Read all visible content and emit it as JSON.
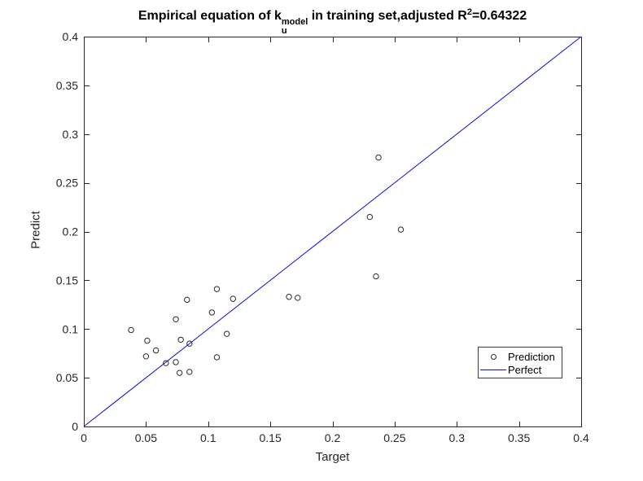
{
  "title": {
    "prefix": "Empirical equation of k",
    "k_sup": "model",
    "k_sub": "u",
    "middle": " in training set,adjusted R",
    "r_exp": "2",
    "suffix": "=0.64322",
    "plain": "Empirical equation of k_u^model in training set,adjusted R^2=0.64322"
  },
  "colors": {
    "axis": "#262626",
    "tick_label": "#262626",
    "title": "#000000",
    "background": "#ffffff",
    "marker": "#2b2b2b",
    "line": "#0d0dd6"
  },
  "chart_data": {
    "type": "scatter",
    "xlabel": "Target",
    "ylabel": "Predict",
    "xlim": [
      0,
      0.4
    ],
    "ylim": [
      0,
      0.4
    ],
    "grid": false,
    "box": true,
    "legend_position": "southeast",
    "xtick_values": [
      0,
      0.05,
      0.1,
      0.15,
      0.2,
      0.25,
      0.3,
      0.35,
      0.4
    ],
    "xtick_labels": [
      "0",
      "0.05",
      "0.1",
      "0.15",
      "0.2",
      "0.25",
      "0.3",
      "0.35",
      "0.4"
    ],
    "ytick_values": [
      0,
      0.05,
      0.1,
      0.15,
      0.2,
      0.25,
      0.3,
      0.35,
      0.4
    ],
    "ytick_labels": [
      "0",
      "0.05",
      "0.1",
      "0.15",
      "0.2",
      "0.25",
      "0.3",
      "0.35",
      "0.4"
    ],
    "series": [
      {
        "name": "Prediction",
        "kind": "scatter",
        "marker": "open-circle",
        "color": "#2b2b2b",
        "points": [
          [
            0.038,
            0.099
          ],
          [
            0.051,
            0.088
          ],
          [
            0.05,
            0.072
          ],
          [
            0.058,
            0.078
          ],
          [
            0.066,
            0.065
          ],
          [
            0.074,
            0.11
          ],
          [
            0.074,
            0.066
          ],
          [
            0.077,
            0.055
          ],
          [
            0.078,
            0.089
          ],
          [
            0.083,
            0.13
          ],
          [
            0.085,
            0.085
          ],
          [
            0.085,
            0.056
          ],
          [
            0.103,
            0.117
          ],
          [
            0.107,
            0.141
          ],
          [
            0.107,
            0.071
          ],
          [
            0.115,
            0.095
          ],
          [
            0.12,
            0.131
          ],
          [
            0.165,
            0.133
          ],
          [
            0.172,
            0.132
          ],
          [
            0.23,
            0.215
          ],
          [
            0.235,
            0.154
          ],
          [
            0.237,
            0.276
          ],
          [
            0.255,
            0.202
          ]
        ]
      },
      {
        "name": "Perfect",
        "kind": "line",
        "color": "#0d0dd6",
        "points": [
          [
            0,
            0
          ],
          [
            0.4,
            0.4
          ]
        ]
      }
    ]
  }
}
